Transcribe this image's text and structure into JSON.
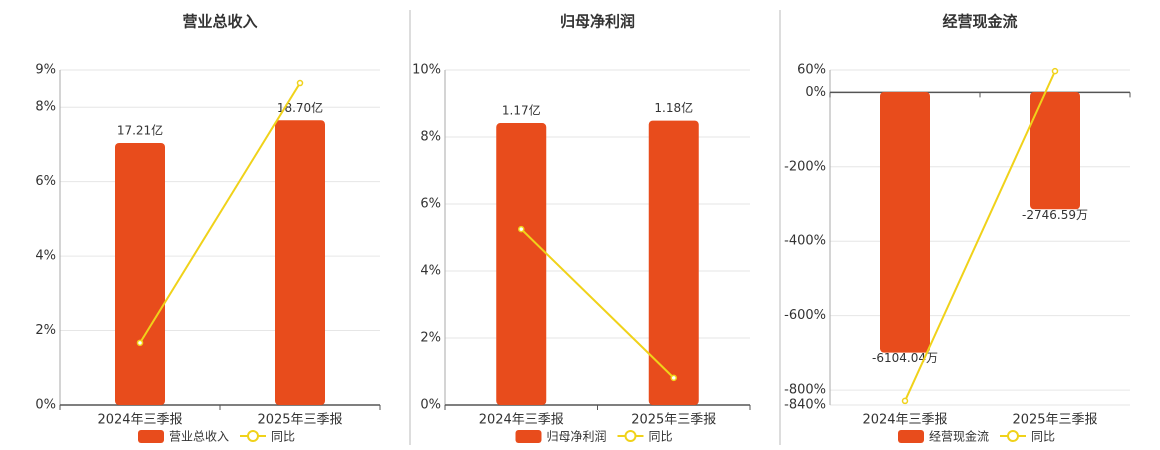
{
  "chart_data": [
    {
      "type": "bar",
      "title": "营业总收入",
      "categories": [
        "2024年三季报",
        "2025年三季报"
      ],
      "series": [
        {
          "name": "营业总收入",
          "color": "#e84c1c",
          "axis": "y2",
          "values": [
            17.21,
            18.7
          ],
          "value_labels": [
            "17.21亿",
            "18.70亿"
          ]
        },
        {
          "name": "同比",
          "color": "#f0d21a",
          "type": "line",
          "values": [
            1.67,
            8.65
          ]
        }
      ],
      "ylim": [
        0,
        9
      ],
      "yticks": [
        {
          "value": 0,
          "label": "0%"
        },
        {
          "value": 2,
          "label": "2%"
        },
        {
          "value": 4,
          "label": "4%"
        },
        {
          "value": 6,
          "label": "6%"
        },
        {
          "value": 8,
          "label": "8%"
        },
        {
          "value": 9,
          "label": "9%"
        }
      ],
      "y2lim": [
        0,
        22
      ],
      "grid": true
    },
    {
      "type": "bar",
      "title": "归母净利润",
      "categories": [
        "2024年三季报",
        "2025年三季报"
      ],
      "series": [
        {
          "name": "归母净利润",
          "color": "#e84c1c",
          "axis": "y2",
          "values": [
            1.17,
            1.18
          ],
          "value_labels": [
            "1.17亿",
            "1.18亿"
          ]
        },
        {
          "name": "同比",
          "color": "#f0d21a",
          "type": "line",
          "values": [
            5.25,
            0.81
          ]
        }
      ],
      "ylim": [
        0,
        10
      ],
      "yticks": [
        {
          "value": 0,
          "label": "0%"
        },
        {
          "value": 2,
          "label": "2%"
        },
        {
          "value": 4,
          "label": "4%"
        },
        {
          "value": 6,
          "label": "6%"
        },
        {
          "value": 8,
          "label": "8%"
        },
        {
          "value": 10,
          "label": "10%"
        }
      ],
      "y2lim": [
        0,
        1.39
      ],
      "grid": true
    },
    {
      "type": "bar",
      "title": "经营现金流",
      "categories": [
        "2024年三季报",
        "2025年三季报"
      ],
      "series": [
        {
          "name": "经营现金流",
          "color": "#e84c1c",
          "axis": "y2",
          "values": [
            -6104.04,
            -2746.59
          ],
          "value_labels": [
            "-6104.04万",
            "-2746.59万"
          ]
        },
        {
          "name": "同比",
          "color": "#f0d21a",
          "type": "line",
          "values": [
            -829,
            57
          ]
        }
      ],
      "ylim": [
        -840,
        60
      ],
      "yticks": [
        {
          "value": -840,
          "label": "-840%"
        },
        {
          "value": -800,
          "label": "-800%"
        },
        {
          "value": -600,
          "label": "-600%"
        },
        {
          "value": -400,
          "label": "-400%"
        },
        {
          "value": -200,
          "label": "-200%"
        },
        {
          "value": 0,
          "label": "0%"
        },
        {
          "value": 60,
          "label": "60%"
        }
      ],
      "y2lim": [
        -7330,
        515
      ],
      "grid": true
    }
  ]
}
